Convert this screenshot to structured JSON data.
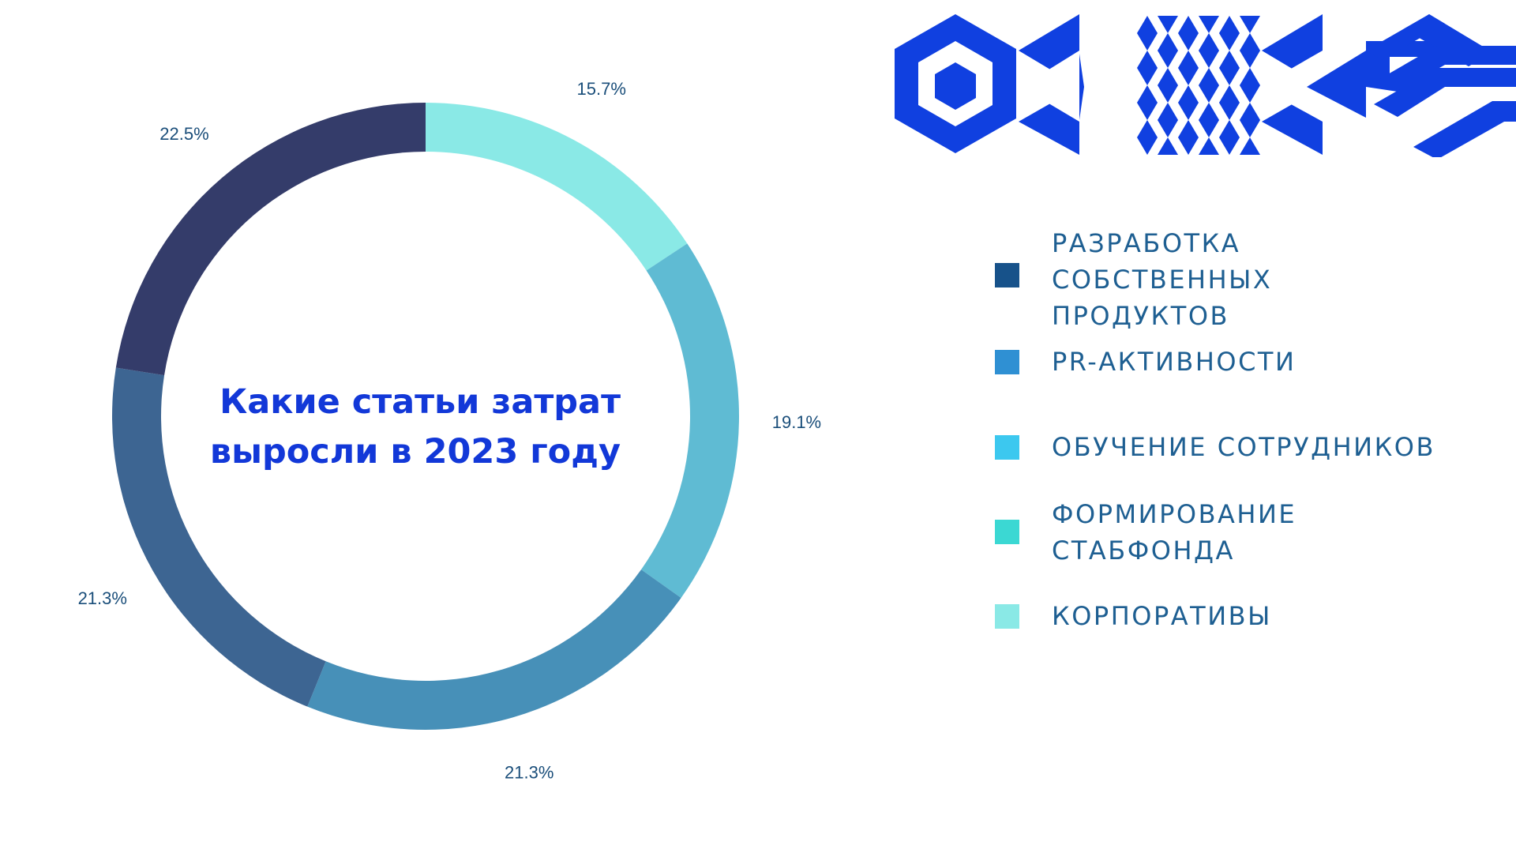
{
  "chart_data": {
    "type": "pie",
    "style": "donut",
    "title_lines": [
      "Какие статьи затрат",
      "выросли в 2023 году"
    ],
    "slices": [
      {
        "label": "15.7%",
        "value": 15.7,
        "color": "#8ae9e6"
      },
      {
        "label": "19.1%",
        "value": 19.1,
        "color": "#5fbbd3"
      },
      {
        "label": "21.3%",
        "value": 21.3,
        "color": "#4790b8"
      },
      {
        "label": "21.3%",
        "value": 21.3,
        "color": "#3d6592"
      },
      {
        "label": "22.5%",
        "value": 22.5,
        "color": "#343c6a"
      }
    ],
    "legend": [
      {
        "lines": [
          "РАЗРАБОТКА",
          "СОБСТВЕННЫХ",
          "ПРОДУКТОВ"
        ],
        "color": "#17528a"
      },
      {
        "lines": [
          "PR-АКТИВНОСТИ"
        ],
        "color": "#2f90d3"
      },
      {
        "lines": [
          "ОБУЧЕНИЕ СОТРУДНИКОВ"
        ],
        "color": "#3cc8ef"
      },
      {
        "lines": [
          "ФОРМИРОВАНИЕ",
          "СТАБФОНДА"
        ],
        "color": "#3bd8d3"
      },
      {
        "lines": [
          "КОРПОРАТИВЫ"
        ],
        "color": "#8ae9e6"
      }
    ],
    "legend_placement": "right"
  },
  "colors": {
    "title": "#1238d8",
    "labels": "#1a4e7a",
    "legend_text": "#1e5f92",
    "logo": "#1040e0"
  },
  "logo": {
    "icon": "geometric-pattern-logo"
  }
}
